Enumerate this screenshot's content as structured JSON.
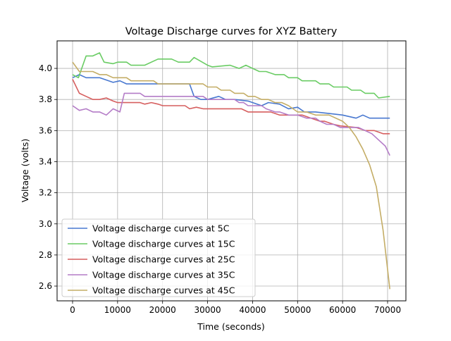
{
  "chart_data": {
    "type": "line",
    "title": "Voltage Discharge curves for XYZ Battery",
    "xlabel": "Time (seconds)",
    "ylabel": "Voltage (volts)",
    "xlim": [
      -3445,
      74070
    ],
    "ylim": [
      2.505,
      4.177
    ],
    "xticks": [
      0,
      10000,
      20000,
      30000,
      40000,
      50000,
      60000,
      70000
    ],
    "yticks": [
      2.6,
      2.8,
      3.0,
      3.2,
      3.4,
      3.6,
      3.8,
      4.0
    ],
    "ytick_labels": [
      "2.6",
      "2.8",
      "3.0",
      "3.2",
      "3.4",
      "3.6",
      "3.8",
      "4.0"
    ],
    "grid": true,
    "legend_placement": "lower-left",
    "series": [
      {
        "name": "Voltage discharge curves at 5C",
        "color": "#4878d0",
        "x": [
          0,
          1500,
          3000,
          6000,
          9000,
          10500,
          12000,
          15000,
          18000,
          21000,
          24000,
          26000,
          27000,
          28500,
          30000,
          32500,
          34000,
          36000,
          39000,
          42000,
          43500,
          46000,
          48000,
          50000,
          51500,
          54000,
          57000,
          60000,
          63000,
          64500,
          66000,
          68000,
          70500
        ],
        "y": [
          3.94,
          3.96,
          3.94,
          3.94,
          3.91,
          3.92,
          3.9,
          3.9,
          3.9,
          3.9,
          3.9,
          3.9,
          3.82,
          3.8,
          3.8,
          3.82,
          3.8,
          3.8,
          3.79,
          3.76,
          3.78,
          3.77,
          3.74,
          3.75,
          3.72,
          3.72,
          3.71,
          3.7,
          3.68,
          3.7,
          3.68,
          3.68,
          3.68
        ]
      },
      {
        "name": "Voltage discharge curves at 15C",
        "color": "#6acc64",
        "x": [
          0,
          1300,
          3000,
          4500,
          6000,
          7000,
          9000,
          10000,
          12000,
          13000,
          16000,
          19000,
          22000,
          23500,
          26000,
          27000,
          30000,
          31000,
          35000,
          37000,
          38500,
          41500,
          43000,
          45000,
          47000,
          48000,
          50000,
          51000,
          54000,
          55000,
          57000,
          58000,
          61000,
          62000,
          64000,
          65000,
          67000,
          68000,
          70500
        ],
        "y": [
          3.96,
          3.94,
          4.08,
          4.08,
          4.1,
          4.04,
          4.03,
          4.04,
          4.04,
          4.02,
          4.02,
          4.06,
          4.06,
          4.04,
          4.04,
          4.07,
          4.02,
          4.01,
          4.02,
          4.0,
          4.02,
          3.98,
          3.98,
          3.96,
          3.96,
          3.94,
          3.94,
          3.92,
          3.92,
          3.9,
          3.9,
          3.88,
          3.88,
          3.86,
          3.86,
          3.84,
          3.84,
          3.81,
          3.82
        ]
      },
      {
        "name": "Voltage discharge curves at 25C",
        "color": "#d65f5f",
        "x": [
          0,
          1500,
          3000,
          4500,
          6000,
          7500,
          9000,
          10000,
          15000,
          16000,
          17500,
          19000,
          20000,
          25000,
          26000,
          27500,
          29000,
          35000,
          37500,
          39000,
          44000,
          46000,
          51000,
          53000,
          55000,
          56000,
          58000,
          59500,
          63000,
          65000,
          67000,
          69000,
          70500
        ],
        "y": [
          3.93,
          3.84,
          3.82,
          3.8,
          3.8,
          3.81,
          3.79,
          3.78,
          3.78,
          3.77,
          3.78,
          3.77,
          3.76,
          3.76,
          3.74,
          3.75,
          3.74,
          3.74,
          3.74,
          3.72,
          3.72,
          3.7,
          3.7,
          3.68,
          3.66,
          3.66,
          3.64,
          3.63,
          3.62,
          3.6,
          3.6,
          3.58,
          3.58
        ]
      },
      {
        "name": "Voltage discharge curves at 35C",
        "color": "#b47cc7",
        "x": [
          0,
          1500,
          3000,
          4500,
          6000,
          7500,
          9000,
          10500,
          11500,
          15000,
          16000,
          18000,
          29000,
          30000,
          36000,
          37000,
          38000,
          39000,
          42000,
          43000,
          45000,
          46000,
          48000,
          50000,
          52000,
          54000,
          55000,
          56500,
          58000,
          59500,
          63500,
          65000,
          66500,
          68000,
          69500,
          70500
        ],
        "y": [
          3.76,
          3.73,
          3.74,
          3.72,
          3.72,
          3.7,
          3.74,
          3.72,
          3.84,
          3.84,
          3.82,
          3.82,
          3.82,
          3.8,
          3.8,
          3.78,
          3.78,
          3.76,
          3.76,
          3.74,
          3.72,
          3.72,
          3.7,
          3.7,
          3.68,
          3.68,
          3.66,
          3.64,
          3.64,
          3.62,
          3.62,
          3.6,
          3.58,
          3.54,
          3.5,
          3.44
        ]
      },
      {
        "name": "Voltage discharge curves at 45C",
        "color": "#c4ad66",
        "x": [
          0,
          1500,
          4500,
          6000,
          7500,
          9000,
          12000,
          13000,
          18000,
          19000,
          29000,
          30000,
          32000,
          33000,
          35000,
          36000,
          38000,
          39000,
          40500,
          42000,
          43500,
          45000,
          46500,
          48000,
          50000,
          52000,
          54000,
          57000,
          60000,
          61500,
          63000,
          64500,
          66000,
          67500,
          69000,
          70500
        ],
        "y": [
          4.04,
          3.98,
          3.98,
          3.96,
          3.96,
          3.94,
          3.94,
          3.92,
          3.92,
          3.9,
          3.9,
          3.88,
          3.88,
          3.86,
          3.86,
          3.84,
          3.84,
          3.82,
          3.82,
          3.8,
          3.8,
          3.78,
          3.78,
          3.76,
          3.72,
          3.72,
          3.7,
          3.7,
          3.66,
          3.62,
          3.56,
          3.48,
          3.38,
          3.24,
          2.96,
          2.58
        ]
      }
    ]
  }
}
